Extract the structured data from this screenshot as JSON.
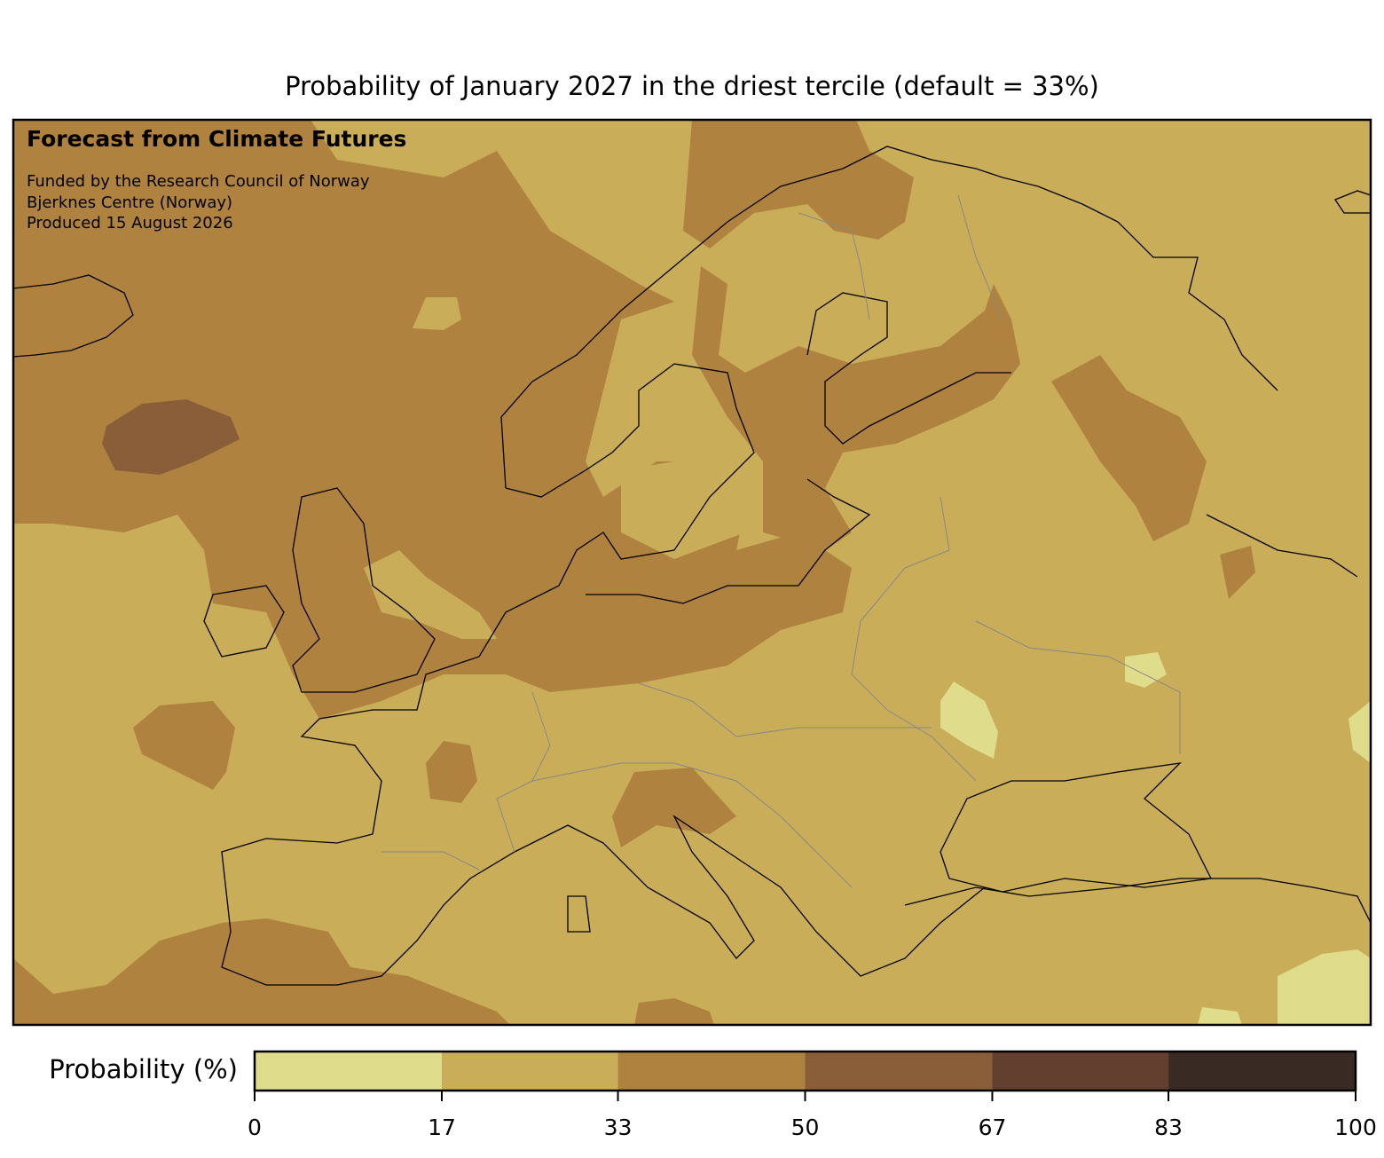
{
  "title": "Probability of January 2027 in the driest tercile (default = 33%)",
  "annotations": {
    "heading": "Forecast from Climate Futures",
    "lines": [
      "Funded by the Research Council of Norway",
      "Bjerknes Centre (Norway)",
      "Produced 15 August 2026"
    ]
  },
  "colorbar": {
    "label": "Probability (%)",
    "range": [
      0,
      100
    ],
    "ticks": [
      0,
      17,
      33,
      50,
      67,
      83,
      100
    ],
    "colors": [
      "#dfdc8c",
      "#c9ad59",
      "#b0823f",
      "#8b5e3a",
      "#633f30",
      "#3a2a24"
    ]
  }
}
